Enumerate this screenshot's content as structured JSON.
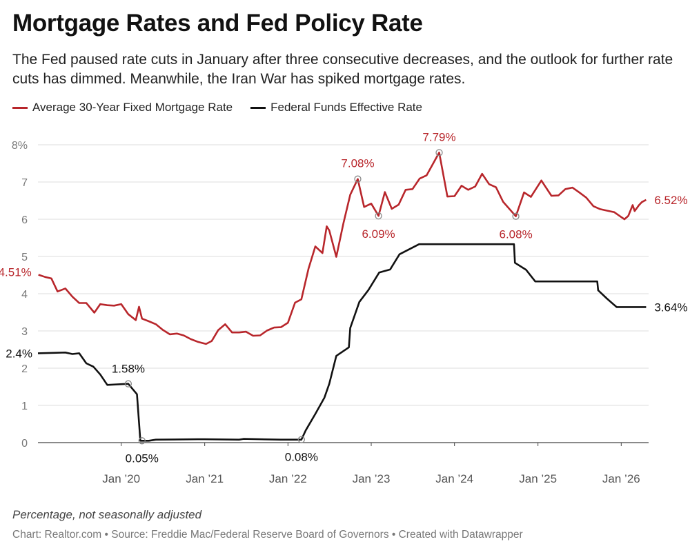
{
  "header": {
    "title": "Mortgage Rates and Fed Policy Rate",
    "subtitle": "The Fed paused rate cuts in January after three consecutive decreases, and the outlook for further rate cuts has dimmed. Meanwhile, the Iran War has spiked mortgage rates."
  },
  "legend": {
    "mortgage_label": "Average 30-Year Fixed Mortgage Rate",
    "fed_label": "Federal Funds Effective Rate"
  },
  "footer": {
    "note": "Percentage, not seasonally adjusted",
    "source": "Chart: Realtor.com • Source: Freddie Mac/Federal Reserve Board of Governors  • Created with Datawrapper"
  },
  "colors": {
    "mortgage": "#b8262b",
    "fed": "#111111",
    "grid": "#dddddd",
    "axis_text": "#777777"
  },
  "chart_data": {
    "type": "line",
    "title": "Mortgage Rates and Fed Policy Rate",
    "xlabel": "",
    "ylabel": "",
    "x_range": [
      "2019-01-01",
      "2026-05-01"
    ],
    "ylim": [
      0,
      8
    ],
    "grid": true,
    "legend_position": "top-left",
    "x_ticks": [
      {
        "x": "2020-01-01",
        "label": "Jan ’20"
      },
      {
        "x": "2021-01-01",
        "label": "Jan ’21"
      },
      {
        "x": "2022-01-01",
        "label": "Jan ’22"
      },
      {
        "x": "2023-01-01",
        "label": "Jan ’23"
      },
      {
        "x": "2024-01-01",
        "label": "Jan ’24"
      },
      {
        "x": "2025-01-01",
        "label": "Jan ’25"
      },
      {
        "x": "2026-01-01",
        "label": "Jan ’26"
      }
    ],
    "y_ticks": [
      {
        "y": 0,
        "label": "0"
      },
      {
        "y": 1,
        "label": "1"
      },
      {
        "y": 2,
        "label": "2"
      },
      {
        "y": 3,
        "label": "3"
      },
      {
        "y": 4,
        "label": "4"
      },
      {
        "y": 5,
        "label": "5"
      },
      {
        "y": 6,
        "label": "6"
      },
      {
        "y": 7,
        "label": "7"
      },
      {
        "y": 8,
        "label": "8%"
      }
    ],
    "series": [
      {
        "name": "Average 30-Year Fixed Mortgage Rate",
        "color": "#b8262b",
        "points": [
          [
            "2019-01-03",
            4.51
          ],
          [
            "2019-02-01",
            4.45
          ],
          [
            "2019-03-01",
            4.41
          ],
          [
            "2019-03-28",
            4.06
          ],
          [
            "2019-05-01",
            4.14
          ],
          [
            "2019-06-01",
            3.92
          ],
          [
            "2019-07-01",
            3.75
          ],
          [
            "2019-08-01",
            3.75
          ],
          [
            "2019-09-05",
            3.49
          ],
          [
            "2019-10-01",
            3.72
          ],
          [
            "2019-11-01",
            3.69
          ],
          [
            "2019-12-01",
            3.68
          ],
          [
            "2020-01-01",
            3.72
          ],
          [
            "2020-02-01",
            3.45
          ],
          [
            "2020-03-05",
            3.29
          ],
          [
            "2020-03-19",
            3.65
          ],
          [
            "2020-04-01",
            3.33
          ],
          [
            "2020-05-01",
            3.26
          ],
          [
            "2020-06-01",
            3.18
          ],
          [
            "2020-07-01",
            3.03
          ],
          [
            "2020-08-01",
            2.91
          ],
          [
            "2020-09-01",
            2.93
          ],
          [
            "2020-10-01",
            2.88
          ],
          [
            "2020-11-01",
            2.78
          ],
          [
            "2020-12-01",
            2.71
          ],
          [
            "2021-01-07",
            2.65
          ],
          [
            "2021-02-01",
            2.73
          ],
          [
            "2021-03-01",
            3.02
          ],
          [
            "2021-04-01",
            3.18
          ],
          [
            "2021-05-01",
            2.96
          ],
          [
            "2021-06-01",
            2.96
          ],
          [
            "2021-07-01",
            2.98
          ],
          [
            "2021-08-01",
            2.87
          ],
          [
            "2021-09-01",
            2.88
          ],
          [
            "2021-10-01",
            3.01
          ],
          [
            "2021-11-01",
            3.09
          ],
          [
            "2021-12-01",
            3.1
          ],
          [
            "2022-01-01",
            3.22
          ],
          [
            "2022-02-01",
            3.76
          ],
          [
            "2022-03-01",
            3.85
          ],
          [
            "2022-04-01",
            4.67
          ],
          [
            "2022-05-01",
            5.27
          ],
          [
            "2022-06-01",
            5.09
          ],
          [
            "2022-06-20",
            5.81
          ],
          [
            "2022-07-01",
            5.7
          ],
          [
            "2022-08-01",
            4.99
          ],
          [
            "2022-09-01",
            5.89
          ],
          [
            "2022-10-01",
            6.66
          ],
          [
            "2022-11-03",
            7.08
          ],
          [
            "2022-12-01",
            6.33
          ],
          [
            "2023-01-01",
            6.42
          ],
          [
            "2023-02-02",
            6.09
          ],
          [
            "2023-03-02",
            6.73
          ],
          [
            "2023-04-01",
            6.28
          ],
          [
            "2023-05-01",
            6.39
          ],
          [
            "2023-06-01",
            6.79
          ],
          [
            "2023-07-01",
            6.81
          ],
          [
            "2023-08-01",
            7.09
          ],
          [
            "2023-09-01",
            7.18
          ],
          [
            "2023-10-26",
            7.79
          ],
          [
            "2023-12-01",
            6.61
          ],
          [
            "2024-01-01",
            6.62
          ],
          [
            "2024-02-01",
            6.9
          ],
          [
            "2024-03-01",
            6.79
          ],
          [
            "2024-04-01",
            6.88
          ],
          [
            "2024-05-01",
            7.22
          ],
          [
            "2024-06-01",
            6.94
          ],
          [
            "2024-07-01",
            6.86
          ],
          [
            "2024-08-01",
            6.47
          ],
          [
            "2024-09-26",
            6.08
          ],
          [
            "2024-11-01",
            6.72
          ],
          [
            "2024-12-01",
            6.6
          ],
          [
            "2025-01-16",
            7.04
          ],
          [
            "2025-02-01",
            6.89
          ],
          [
            "2025-03-01",
            6.63
          ],
          [
            "2025-04-01",
            6.64
          ],
          [
            "2025-05-01",
            6.81
          ],
          [
            "2025-06-01",
            6.85
          ],
          [
            "2025-07-01",
            6.72
          ],
          [
            "2025-08-01",
            6.58
          ],
          [
            "2025-09-01",
            6.35
          ],
          [
            "2025-10-01",
            6.27
          ],
          [
            "2025-11-01",
            6.23
          ],
          [
            "2025-12-01",
            6.19
          ],
          [
            "2026-01-01",
            6.06
          ],
          [
            "2026-01-15",
            6.0
          ],
          [
            "2026-02-01",
            6.09
          ],
          [
            "2026-02-20",
            6.38
          ],
          [
            "2026-03-01",
            6.22
          ],
          [
            "2026-03-20",
            6.38
          ],
          [
            "2026-04-01",
            6.46
          ],
          [
            "2026-04-20",
            6.52
          ]
        ]
      },
      {
        "name": "Federal Funds Effective Rate",
        "color": "#111111",
        "points": [
          [
            "2019-01-01",
            2.4
          ],
          [
            "2019-05-01",
            2.42
          ],
          [
            "2019-06-01",
            2.38
          ],
          [
            "2019-07-01",
            2.4
          ],
          [
            "2019-08-01",
            2.13
          ],
          [
            "2019-09-01",
            2.04
          ],
          [
            "2019-10-01",
            1.83
          ],
          [
            "2019-11-01",
            1.55
          ],
          [
            "2020-02-01",
            1.58
          ],
          [
            "2020-03-10",
            1.3
          ],
          [
            "2020-03-25",
            0.05
          ],
          [
            "2020-05-01",
            0.05
          ],
          [
            "2020-06-01",
            0.08
          ],
          [
            "2020-12-01",
            0.09
          ],
          [
            "2021-01-01",
            0.09
          ],
          [
            "2021-06-01",
            0.08
          ],
          [
            "2021-06-20",
            0.1
          ],
          [
            "2021-12-01",
            0.08
          ],
          [
            "2022-03-01",
            0.08
          ],
          [
            "2022-03-20",
            0.33
          ],
          [
            "2022-05-01",
            0.77
          ],
          [
            "2022-06-10",
            1.21
          ],
          [
            "2022-07-01",
            1.58
          ],
          [
            "2022-08-01",
            2.33
          ],
          [
            "2022-09-25",
            2.56
          ],
          [
            "2022-10-01",
            3.08
          ],
          [
            "2022-11-10",
            3.78
          ],
          [
            "2022-12-20",
            4.1
          ],
          [
            "2023-02-05",
            4.57
          ],
          [
            "2023-03-25",
            4.65
          ],
          [
            "2023-05-05",
            5.06
          ],
          [
            "2023-07-30",
            5.33
          ],
          [
            "2024-09-18",
            5.33
          ],
          [
            "2024-09-22",
            4.83
          ],
          [
            "2024-11-10",
            4.64
          ],
          [
            "2024-12-20",
            4.33
          ],
          [
            "2025-09-18",
            4.33
          ],
          [
            "2025-09-22",
            4.09
          ],
          [
            "2025-10-30",
            3.87
          ],
          [
            "2025-12-12",
            3.64
          ],
          [
            "2026-04-20",
            3.64
          ]
        ]
      }
    ],
    "annotations": [
      {
        "series": 0,
        "x": "2019-01-03",
        "y": 4.51,
        "label": "4.51%",
        "marker": false
      },
      {
        "series": 0,
        "x": "2022-11-03",
        "y": 7.08,
        "label": "7.08%",
        "marker": true
      },
      {
        "series": 0,
        "x": "2023-02-02",
        "y": 6.09,
        "label": "6.09%",
        "marker": true
      },
      {
        "series": 0,
        "x": "2023-10-26",
        "y": 7.79,
        "label": "7.79%",
        "marker": true
      },
      {
        "series": 0,
        "x": "2024-09-26",
        "y": 6.08,
        "label": "6.08%",
        "marker": true
      },
      {
        "series": 0,
        "x": "2026-04-20",
        "y": 6.52,
        "label": "6.52%",
        "marker": false
      },
      {
        "series": 1,
        "x": "2019-01-01",
        "y": 2.4,
        "label": "2.4%",
        "marker": false
      },
      {
        "series": 1,
        "x": "2020-02-01",
        "y": 1.58,
        "label": "1.58%",
        "marker": true
      },
      {
        "series": 1,
        "x": "2020-04-01",
        "y": 0.05,
        "label": "0.05%",
        "marker": true
      },
      {
        "series": 1,
        "x": "2022-03-01",
        "y": 0.08,
        "label": "0.08%",
        "marker": true
      },
      {
        "series": 1,
        "x": "2026-04-20",
        "y": 3.64,
        "label": "3.64%",
        "marker": false
      }
    ]
  }
}
